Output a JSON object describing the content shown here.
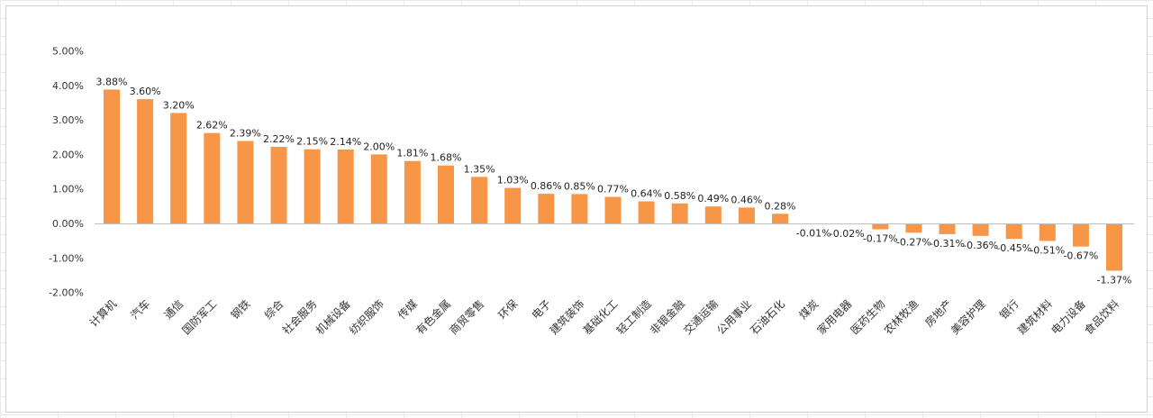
{
  "chart_data": {
    "type": "bar",
    "title": "",
    "xlabel": "",
    "ylabel": "",
    "ylim": [
      -2,
      5
    ],
    "yticks": [
      -2,
      -1,
      0,
      1,
      2,
      3,
      4,
      5
    ],
    "ytick_labels": [
      "-2.00%",
      "-1.00%",
      "0.00%",
      "1.00%",
      "2.00%",
      "3.00%",
      "4.00%",
      "5.00%"
    ],
    "categories": [
      "计算机",
      "汽车",
      "通信",
      "国防军工",
      "钢铁",
      "综合",
      "社会服务",
      "机械设备",
      "纺织服饰",
      "传媒",
      "有色金属",
      "商贸零售",
      "环保",
      "电子",
      "建筑装饰",
      "基础化工",
      "轻工制造",
      "非银金融",
      "交通运输",
      "公用事业",
      "石油石化",
      "煤炭",
      "家用电器",
      "医药生物",
      "农林牧渔",
      "房地产",
      "美容护理",
      "银行",
      "建筑材料",
      "电力设备",
      "食品饮料"
    ],
    "values": [
      3.88,
      3.6,
      3.2,
      2.62,
      2.39,
      2.22,
      2.15,
      2.14,
      2.0,
      1.81,
      1.68,
      1.35,
      1.03,
      0.86,
      0.85,
      0.77,
      0.64,
      0.58,
      0.49,
      0.46,
      0.28,
      -0.01,
      -0.02,
      -0.17,
      -0.27,
      -0.31,
      -0.36,
      -0.45,
      -0.51,
      -0.67,
      -1.37
    ],
    "data_labels": [
      "3.88%",
      "3.60%",
      "3.20%",
      "2.62%",
      "2.39%",
      "2.22%",
      "2.15%",
      "2.14%",
      "2.00%",
      "1.81%",
      "1.68%",
      "1.35%",
      "1.03%",
      "0.86%",
      "0.85%",
      "0.77%",
      "0.64%",
      "0.58%",
      "0.49%",
      "0.46%",
      "0.28%",
      "-0.01%",
      "-0.02%",
      "-0.17%",
      "-0.27%",
      "-0.31%",
      "-0.36%",
      "-0.45%",
      "-0.51%",
      "-0.67%",
      "-1.37%"
    ],
    "bar_color": "#F79646",
    "grid": false,
    "legend": "none"
  }
}
